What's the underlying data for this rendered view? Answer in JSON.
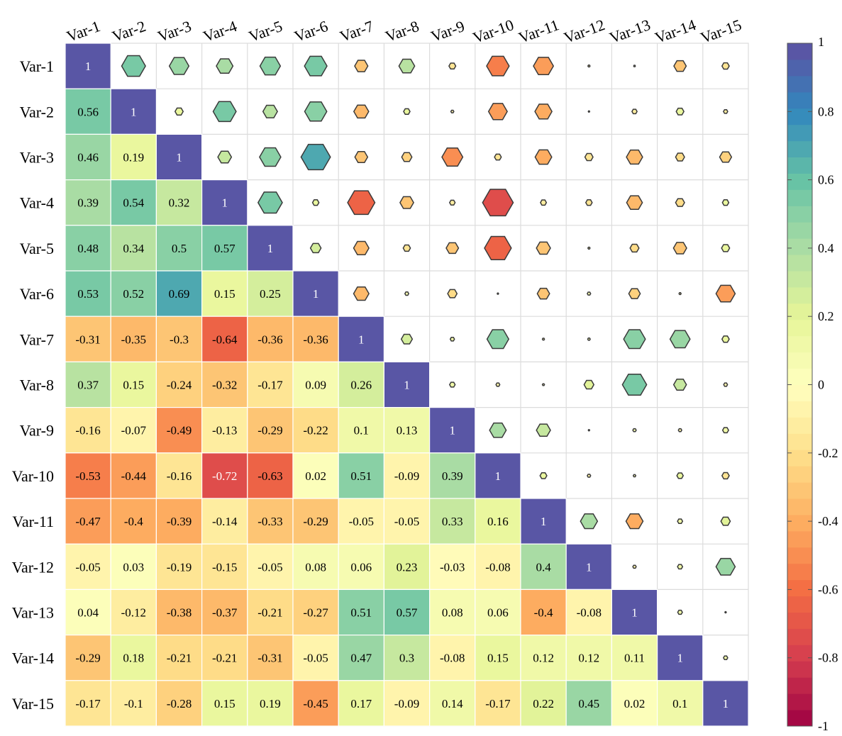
{
  "chart_data": {
    "type": "heatmap",
    "title": "",
    "xlabel": "",
    "ylabel": "",
    "variables": [
      "Var-1",
      "Var-2",
      "Var-3",
      "Var-4",
      "Var-5",
      "Var-6",
      "Var-7",
      "Var-8",
      "Var-9",
      "Var-10",
      "Var-11",
      "Var-12",
      "Var-13",
      "Var-14",
      "Var-15"
    ],
    "lower_matrix": [
      [
        1.0
      ],
      [
        0.56,
        1.0
      ],
      [
        0.46,
        0.19,
        1.0
      ],
      [
        0.39,
        0.54,
        0.32,
        1.0
      ],
      [
        0.48,
        0.34,
        0.5,
        0.57,
        1.0
      ],
      [
        0.53,
        0.52,
        0.69,
        0.15,
        0.25,
        1.0
      ],
      [
        -0.31,
        -0.35,
        -0.3,
        -0.64,
        -0.36,
        -0.36,
        1.0
      ],
      [
        0.37,
        0.15,
        -0.24,
        -0.32,
        -0.17,
        0.09,
        0.26,
        1.0
      ],
      [
        -0.16,
        -0.07,
        -0.49,
        -0.13,
        -0.29,
        -0.22,
        0.1,
        0.13,
        1.0
      ],
      [
        -0.53,
        -0.44,
        -0.16,
        -0.72,
        -0.63,
        0.02,
        0.51,
        -0.09,
        0.39,
        1.0
      ],
      [
        -0.47,
        -0.4,
        -0.39,
        -0.14,
        -0.33,
        -0.29,
        -0.05,
        -0.05,
        0.33,
        0.16,
        1.0
      ],
      [
        -0.05,
        0.03,
        -0.19,
        -0.15,
        -0.05,
        0.08,
        0.06,
        0.23,
        -0.03,
        -0.08,
        0.4,
        1.0
      ],
      [
        0.04,
        -0.12,
        -0.38,
        -0.37,
        -0.21,
        -0.27,
        0.51,
        0.57,
        0.08,
        0.06,
        -0.4,
        -0.08,
        1.0
      ],
      [
        -0.29,
        0.18,
        -0.21,
        -0.21,
        -0.31,
        -0.05,
        0.47,
        0.3,
        -0.08,
        0.15,
        0.12,
        0.12,
        0.11,
        1.0
      ],
      [
        -0.17,
        -0.1,
        -0.28,
        0.15,
        0.19,
        -0.45,
        0.17,
        -0.09,
        0.14,
        -0.17,
        0.22,
        0.45,
        0.02,
        0.1,
        1.0
      ]
    ],
    "upper_marker": "hexagon",
    "colorbar": {
      "ticks": [
        "1",
        "0.8",
        "0.6",
        "0.4",
        "0.2",
        "0",
        "-0.2",
        "-0.4",
        "-0.6",
        "-0.8",
        "-1"
      ],
      "range": [
        -1,
        1
      ],
      "levels": 42,
      "placement": "right"
    },
    "colormap": [
      "#9e0142",
      "#d53e4f",
      "#f46d43",
      "#fdae61",
      "#fee08b",
      "#ffffbf",
      "#e6f598",
      "#abdda4",
      "#66c2a5",
      "#3288bd",
      "#5e4fa2"
    ],
    "grid": true
  }
}
